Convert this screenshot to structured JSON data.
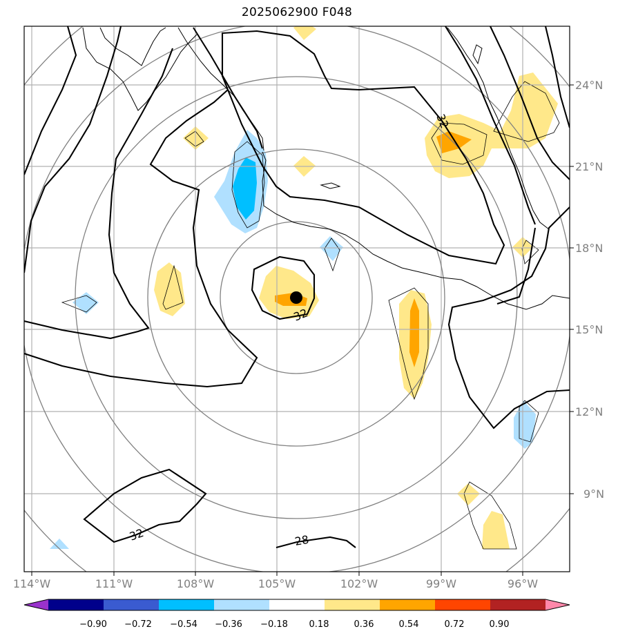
{
  "title": "2025062900 F048",
  "map": {
    "lon_range": [
      -114.3,
      -94.7
    ],
    "lat_range": [
      6.3,
      25.9
    ],
    "lon_ticks": [
      {
        "value": -114,
        "label": "114°W"
      },
      {
        "value": -111,
        "label": "111°W"
      },
      {
        "value": -108,
        "label": "108°W"
      },
      {
        "value": -105,
        "label": "105°W"
      },
      {
        "value": -102,
        "label": "102°W"
      },
      {
        "value": -99,
        "label": "99°W"
      },
      {
        "value": -96,
        "label": "96°W"
      }
    ],
    "lat_ticks": [
      {
        "value": 24,
        "label": "24°N"
      },
      {
        "value": 21,
        "label": "21°N"
      },
      {
        "value": 18,
        "label": "18°N"
      },
      {
        "value": 15,
        "label": "15°N"
      },
      {
        "value": 12,
        "label": "12°N"
      },
      {
        "value": 9,
        "label": "9°N"
      }
    ],
    "storm_center": {
      "lon": -104.3,
      "lat": 16.1
    },
    "range_rings": [
      "ring-1",
      "ring-2",
      "ring-3",
      "ring-4",
      "ring-5"
    ],
    "contour_labels": [
      {
        "text": "32",
        "name": "contour-label-north"
      },
      {
        "text": "32",
        "name": "contour-label-center"
      },
      {
        "text": "32",
        "name": "contour-label-southwest"
      },
      {
        "text": "28",
        "name": "contour-label-south"
      }
    ],
    "colors": {
      "land_outline": "#000000",
      "grid": "#b0b0b0",
      "rings": "#808080",
      "storm_marker": "#000000"
    }
  },
  "colorbar": {
    "labels": [
      "−0.90",
      "−0.72",
      "−0.54",
      "−0.36",
      "−0.18",
      "0.18",
      "0.36",
      "0.54",
      "0.72",
      "0.90"
    ],
    "colors": [
      "#9932cc",
      "#00008b",
      "#3a5bd0",
      "#00bfff",
      "#b0e0ff",
      "#ffffff",
      "#ffe88a",
      "#ffa500",
      "#ff4500",
      "#b22222",
      "#ff88aa"
    ]
  }
}
